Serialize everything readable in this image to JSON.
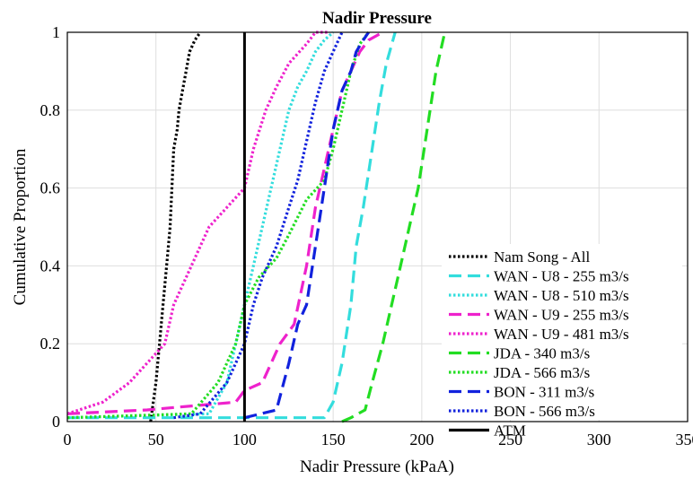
{
  "chart_data": {
    "type": "line",
    "title": "Nadir Pressure",
    "xlabel": "Nadir Pressure (kPaA)",
    "ylabel": "Cumulative Proportion",
    "xlim": [
      0,
      350
    ],
    "ylim": [
      0,
      1
    ],
    "xticks": [
      "0",
      "50",
      "100",
      "150",
      "200",
      "250",
      "300",
      "350"
    ],
    "yticks": [
      "0",
      "0.2",
      "0.4",
      "0.6",
      "0.8",
      "1"
    ],
    "grid": true,
    "legend_position": "center-right",
    "series": [
      {
        "name": "Nam Song - All",
        "color": "#000000",
        "dash": "dotted",
        "x": [
          47,
          50,
          52,
          54,
          56,
          58,
          59,
          60,
          62,
          63,
          65,
          67,
          69,
          72,
          75
        ],
        "y": [
          0,
          0.1,
          0.2,
          0.3,
          0.4,
          0.5,
          0.6,
          0.7,
          0.75,
          0.8,
          0.85,
          0.9,
          0.95,
          0.98,
          1
        ]
      },
      {
        "name": "WAN - U8 - 255 m3/s",
        "color": "#33dddd",
        "dash": "longdash",
        "x": [
          0,
          95,
          145,
          150,
          155,
          160,
          163,
          167,
          172,
          176,
          180,
          185
        ],
        "y": [
          0.01,
          0.01,
          0.01,
          0.05,
          0.15,
          0.3,
          0.45,
          0.55,
          0.7,
          0.82,
          0.92,
          1
        ]
      },
      {
        "name": "WAN - U8 - 510 m3/s",
        "color": "#33dddd",
        "dash": "dotted",
        "x": [
          0,
          80,
          90,
          95,
          100,
          105,
          110,
          115,
          120,
          125,
          130,
          135,
          140,
          145,
          150
        ],
        "y": [
          0.01,
          0.02,
          0.1,
          0.2,
          0.3,
          0.4,
          0.5,
          0.6,
          0.7,
          0.8,
          0.86,
          0.9,
          0.95,
          0.98,
          1
        ]
      },
      {
        "name": "WAN - U9 - 255 m3/s",
        "color": "#ee22cc",
        "dash": "longdash",
        "x": [
          0,
          45,
          70,
          95,
          100,
          110,
          120,
          128,
          135,
          140,
          145,
          150,
          155,
          160,
          165,
          170,
          178
        ],
        "y": [
          0.02,
          0.03,
          0.04,
          0.05,
          0.08,
          0.1,
          0.2,
          0.25,
          0.4,
          0.55,
          0.65,
          0.75,
          0.85,
          0.9,
          0.95,
          0.98,
          1
        ]
      },
      {
        "name": "WAN - U9 - 481 m3/s",
        "color": "#ee22cc",
        "dash": "dotted",
        "x": [
          0,
          20,
          35,
          45,
          55,
          60,
          70,
          80,
          90,
          100,
          105,
          112,
          118,
          125,
          135,
          140,
          148
        ],
        "y": [
          0.02,
          0.05,
          0.1,
          0.15,
          0.2,
          0.3,
          0.4,
          0.5,
          0.55,
          0.6,
          0.7,
          0.8,
          0.86,
          0.92,
          0.97,
          1,
          1
        ]
      },
      {
        "name": "JDA - 340 m3/s",
        "color": "#22dd22",
        "dash": "longdash",
        "x": [
          155,
          160,
          168,
          172,
          178,
          183,
          188,
          193,
          198,
          203,
          208,
          213
        ],
        "y": [
          0,
          0.01,
          0.03,
          0.1,
          0.2,
          0.3,
          0.4,
          0.5,
          0.6,
          0.75,
          0.9,
          1
        ]
      },
      {
        "name": "JDA - 566 m3/s",
        "color": "#22dd22",
        "dash": "dotted",
        "x": [
          0,
          70,
          85,
          95,
          100,
          108,
          118,
          125,
          135,
          145,
          150,
          155,
          160,
          165,
          170
        ],
        "y": [
          0.01,
          0.02,
          0.1,
          0.2,
          0.3,
          0.37,
          0.42,
          0.48,
          0.57,
          0.62,
          0.7,
          0.8,
          0.9,
          0.97,
          1
        ]
      },
      {
        "name": "BON - 311 m3/s",
        "color": "#1122dd",
        "dash": "longdash",
        "x": [
          100,
          118,
          125,
          130,
          135,
          140,
          145,
          150,
          155,
          160,
          163,
          167,
          170
        ],
        "y": [
          0.01,
          0.03,
          0.15,
          0.25,
          0.3,
          0.45,
          0.6,
          0.75,
          0.85,
          0.9,
          0.95,
          0.98,
          1
        ]
      },
      {
        "name": "BON - 566 m3/s",
        "color": "#1122dd",
        "dash": "dotted",
        "x": [
          60,
          75,
          90,
          95,
          100,
          105,
          110,
          118,
          125,
          130,
          135,
          140,
          145,
          150,
          155
        ],
        "y": [
          0.01,
          0.02,
          0.1,
          0.15,
          0.2,
          0.3,
          0.37,
          0.45,
          0.55,
          0.62,
          0.72,
          0.82,
          0.9,
          0.95,
          1
        ]
      },
      {
        "name": "ATM",
        "color": "#000000",
        "dash": "solid",
        "x": [
          100,
          100
        ],
        "y": [
          0,
          1
        ]
      }
    ]
  }
}
